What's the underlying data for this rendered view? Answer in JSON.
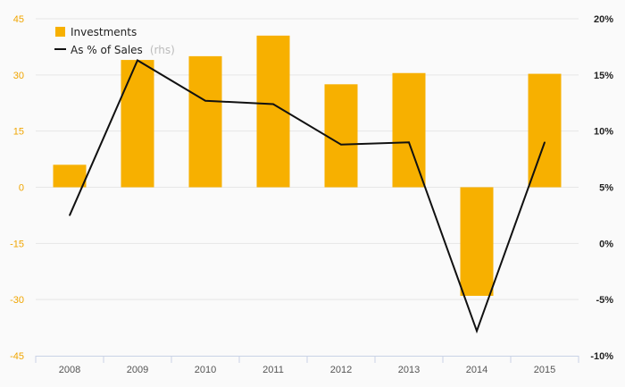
{
  "chart_data": {
    "type": "bar",
    "categories": [
      "2008",
      "2009",
      "2010",
      "2011",
      "2012",
      "2013",
      "2014",
      "2015"
    ],
    "series": [
      {
        "name": "Investments",
        "type": "bar",
        "axis": "left",
        "color": "#f7b000",
        "values": [
          6,
          34,
          35,
          40.5,
          27.5,
          30.5,
          -29,
          30.3
        ]
      },
      {
        "name": "As % of Sales",
        "type": "line",
        "axis": "right",
        "color": "#111111",
        "values": [
          2.5,
          16.3,
          12.7,
          12.4,
          8.8,
          9.0,
          -7.8,
          9.0
        ]
      }
    ],
    "left_axis": {
      "ticks": [
        "45",
        "30",
        "15",
        "0",
        "-15",
        "-30",
        "-45"
      ],
      "ylim": [
        -45,
        45
      ]
    },
    "right_axis": {
      "ticks": [
        "20%",
        "15%",
        "10%",
        "5%",
        "0%",
        "-5%",
        "-10%"
      ],
      "ylim": [
        -10,
        20
      ]
    },
    "legend": {
      "position": "top-left",
      "items": [
        "Investments",
        "As % of Sales"
      ],
      "line_suffix": "(rhs)"
    },
    "grid": true
  }
}
